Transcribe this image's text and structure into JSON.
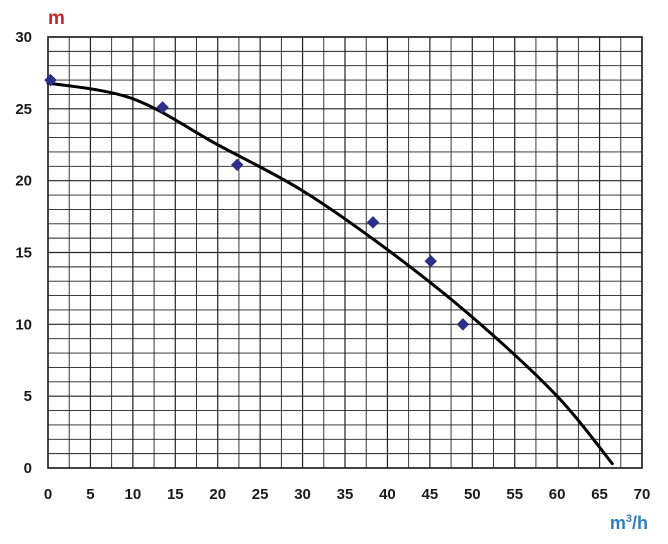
{
  "chart_data": {
    "type": "scatter",
    "title": "",
    "xlabel": "m³/h",
    "ylabel": "m",
    "xlim": [
      0,
      70
    ],
    "ylim": [
      0,
      30
    ],
    "x_ticks": [
      "0",
      "5",
      "10",
      "15",
      "20",
      "25",
      "30",
      "35",
      "40",
      "45",
      "50",
      "55",
      "60",
      "65",
      "70"
    ],
    "y_ticks": [
      "0",
      "5",
      "10",
      "15",
      "20",
      "25",
      "30"
    ],
    "grid": true,
    "grid_minor_x_step": 2.5,
    "grid_minor_y_step": 1,
    "series": [
      {
        "type": "scatter",
        "marker": "diamond",
        "color": "#2b2f86",
        "x": [
          0.3,
          13.5,
          22.3,
          38.3,
          45.1,
          48.9
        ],
        "y": [
          27.0,
          25.1,
          21.1,
          17.1,
          14.4,
          10.0
        ]
      },
      {
        "type": "line",
        "color": "#000000",
        "x": [
          0,
          10,
          20,
          30,
          40,
          50,
          60,
          66.5
        ],
        "y": [
          26.8,
          25.7,
          22.5,
          19.3,
          15.2,
          10.5,
          5.0,
          0.3
        ]
      }
    ],
    "colors": {
      "axis_text": "#1a1a1a",
      "ylabel": "#c0282d",
      "xlabel": "#2f7fc1",
      "grid": "#222222",
      "curve": "#000000",
      "marker": "#2b2f86"
    }
  }
}
